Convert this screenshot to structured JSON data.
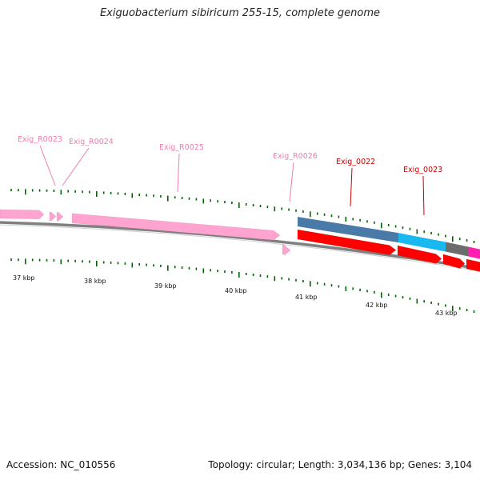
{
  "title": "Exiguobacterium sibiricum 255-15, complete genome",
  "footer": {
    "accession": "Accession: NC_010556",
    "summary": "Topology: circular; Length: 3,034,136 bp; Genes: 3,104"
  },
  "colors": {
    "rna_label": "#f07cb0",
    "cds_label": "#cc0000",
    "tick": "#006400",
    "backbone": "#7a7a7a",
    "rna_feature": "#ffa3d0",
    "cds_feature": "#ff0000",
    "gene_bar_1": "#4a7aa8",
    "gene_bar_2": "#19b9f0",
    "gene_bar_3": "#6d6d6d",
    "gene_bar_4": "#ff1fb0"
  },
  "feature_labels": [
    {
      "text": "Exig_R0023",
      "type": "rna"
    },
    {
      "text": "Exig_R0024",
      "type": "rna"
    },
    {
      "text": "Exig_R0025",
      "type": "rna"
    },
    {
      "text": "Exig_R0026",
      "type": "rna"
    },
    {
      "text": "Exig_0022",
      "type": "cds"
    },
    {
      "text": "Exig_0023",
      "type": "cds"
    }
  ],
  "kbp_labels": [
    "37 kbp",
    "38 kbp",
    "39 kbp",
    "40 kbp",
    "41 kbp",
    "42 kbp",
    "43 kbp"
  ]
}
